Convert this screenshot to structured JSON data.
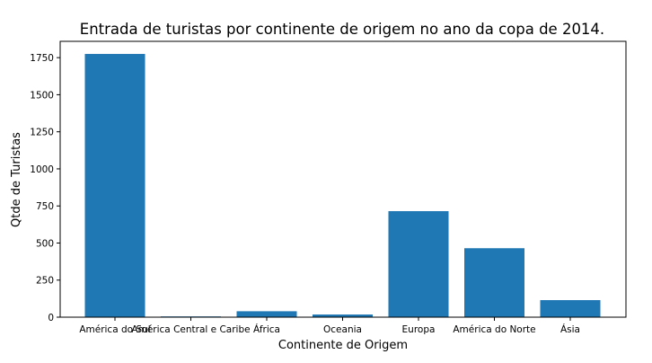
{
  "chart_data": {
    "type": "bar",
    "title": "Entrada de turistas por continente de origem no ano da copa de 2014.",
    "xlabel": "Continente de Origem",
    "ylabel": "Qtde de Turistas",
    "categories": [
      "América do Sul",
      "América Central e Caribe",
      "África",
      "Oceania",
      "Europa",
      "América do Norte",
      "Ásia"
    ],
    "values": [
      1775,
      5,
      40,
      18,
      715,
      465,
      115
    ],
    "ylim": [
      0,
      1860
    ],
    "yticks": [
      0,
      250,
      500,
      750,
      1000,
      1250,
      1500,
      1750
    ],
    "grid": false,
    "bar_color": "#1f77b4"
  }
}
